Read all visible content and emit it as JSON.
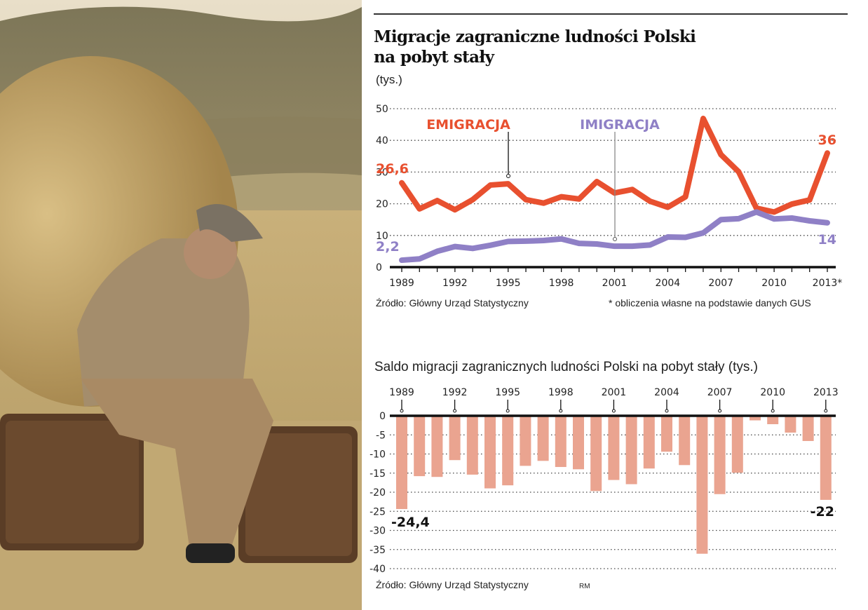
{
  "photo": {
    "description": "Sepia photo of a man in cap and tweed jacket sitting on a suitcase next to a hay bale in a field"
  },
  "header": {
    "title_line1": "Migracje zagraniczne ludności Polski",
    "title_line2": "na pobyt stały",
    "unit": "(tys.)"
  },
  "footer_top": {
    "source": "Źródło: Główny Urząd Statystyczny",
    "note": "* obliczenia własne na podstawie danych GUS"
  },
  "footer_bottom": {
    "source": "Źródło: Główny Urząd Statystyczny",
    "author": "RM"
  },
  "colors": {
    "emigration": "#e8502f",
    "immigration": "#8f80c6",
    "bars": "#eaa490"
  },
  "chart_data": [
    {
      "type": "line",
      "title": "Migracje zagraniczne ludności Polski na pobyt stały",
      "ylabel": "(tys.)",
      "ylim": [
        0,
        50
      ],
      "yticks": [
        0,
        10,
        20,
        30,
        40,
        50
      ],
      "grid": "dotted horizontal",
      "xtick_labels": [
        "1989",
        "1992",
        "1995",
        "1998",
        "2001",
        "2004",
        "2007",
        "2010",
        "2013*"
      ],
      "x": [
        1989,
        1990,
        1991,
        1992,
        1993,
        1994,
        1995,
        1996,
        1997,
        1998,
        1999,
        2000,
        2001,
        2002,
        2003,
        2004,
        2005,
        2006,
        2007,
        2008,
        2009,
        2010,
        2011,
        2012,
        2013
      ],
      "series": [
        {
          "name": "EMIGRACJA",
          "color": "#e8502f",
          "values": [
            26.6,
            18.4,
            21.0,
            18.1,
            21.3,
            25.9,
            26.3,
            21.3,
            20.2,
            22.2,
            21.5,
            27.0,
            23.4,
            24.5,
            20.8,
            18.9,
            22.2,
            46.9,
            35.5,
            30.1,
            18.6,
            17.4,
            19.9,
            21.2,
            36.0
          ],
          "labels": {
            "start": "26,6",
            "end": "36"
          }
        },
        {
          "name": "IMIGRACJA",
          "color": "#8f80c6",
          "values": [
            2.2,
            2.6,
            5.0,
            6.5,
            5.9,
            6.9,
            8.1,
            8.2,
            8.4,
            8.9,
            7.5,
            7.3,
            6.6,
            6.6,
            7.0,
            9.5,
            9.4,
            10.8,
            15.0,
            15.3,
            17.4,
            15.2,
            15.5,
            14.6,
            14.0
          ],
          "labels": {
            "start": "2,2",
            "end": "14"
          }
        }
      ],
      "annotations": [
        "EMIGRACJA",
        "IMIGRACJA"
      ]
    },
    {
      "type": "bar",
      "title": "Saldo migracji zagranicznych ludności Polski na pobyt stały (tys.)",
      "ylim": [
        -40,
        0
      ],
      "yticks": [
        0,
        -5,
        -10,
        -15,
        -20,
        -25,
        -30,
        -35,
        -40
      ],
      "ytick_labels": [
        "0",
        "-5",
        "-10",
        "-15",
        "-20",
        "-25",
        "-30",
        "-35",
        "-40"
      ],
      "grid": "dotted horizontal",
      "xtick_labels": [
        "1989",
        "1992",
        "1995",
        "1998",
        "2001",
        "2004",
        "2007",
        "2010",
        "2013"
      ],
      "categories": [
        "1989",
        "1990",
        "1991",
        "1992",
        "1993",
        "1994",
        "1995",
        "1996",
        "1997",
        "1998",
        "1999",
        "2000",
        "2001",
        "2002",
        "2003",
        "2004",
        "2005",
        "2006",
        "2007",
        "2008",
        "2009",
        "2010",
        "2011",
        "2012",
        "2013"
      ],
      "values": [
        -24.4,
        -15.8,
        -16.0,
        -11.6,
        -15.4,
        -19.0,
        -18.2,
        -13.1,
        -11.8,
        -13.4,
        -14.0,
        -19.7,
        -16.8,
        -17.9,
        -13.8,
        -9.4,
        -12.9,
        -36.1,
        -20.5,
        -14.9,
        -1.2,
        -2.2,
        -4.4,
        -6.6,
        -22.0
      ],
      "labels": {
        "first": "-24,4",
        "last": "-22"
      },
      "color": "#eaa490"
    }
  ]
}
